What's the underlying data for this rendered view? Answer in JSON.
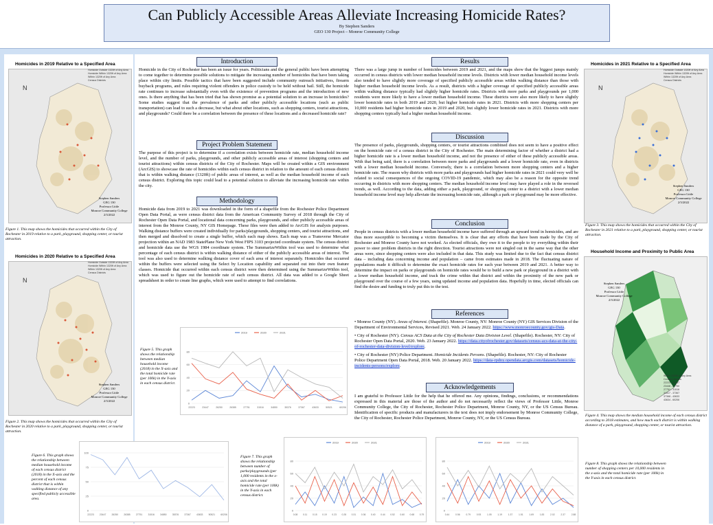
{
  "header": {
    "title": "Can Publicly Accessible Areas Alleviate Increasing Homicide Rates?",
    "author": "By Stephen Sanders",
    "course": "GEO 130 Project – Monroe Community College"
  },
  "colors": {
    "poster_bg": "#cfe0f4",
    "header_bg": "#dbe6f5",
    "series_2019": "#5b86d6",
    "series_2020": "#e8604a",
    "series_2021": "#b8b8b8"
  },
  "sections": {
    "introduction": {
      "heading": "Introduction",
      "body": "Homicide in the City of Rochester has been an issue for years. Politicians and the general public have been attempting to come together to determine possible solutions to mitigate the increasing number of homicides that have been taking place within city limits. Possible tactics that have been suggested include community outreach initiatives, firearm buyback programs, and rules requiring violent offenders in police custody to be held without bail. Still, the homicide rate continues to increase substantially even with the existence of prevention programs and the introduction of new ones. Is there anything that has been tried that has shown promise as a potential solution to an increase in homicides? Some studies suggest that the prevalence of parks and other publicly accessible locations (such as public transportation) can lead to such a decrease, but what about other locations, such as shopping centers, tourist attractions, and playgrounds? Could there be a correlation between the presence of these locations and a decreased homicide rate?"
    },
    "problem": {
      "heading": "Project Problem Statement",
      "body": "The purpose of this project is to determine if a correlation exists between homicide rate, median household income level, and the number of parks, playgrounds, and other publicly accessible areas of interest (shopping centers and tourist attractions) within census districts of the City of Rochester. Maps will be created within a GIS environment (ArcGIS) to showcase the rate of homicides within each census district in relation to the amount of each census district that is within walking distance (1320ft) of public areas of interest, as well as the median household income of each census district. Exploring this topic could lead to a potential solution to alleviate the increasing homicide rate within the city."
    },
    "methodology": {
      "heading": "Methodology",
      "body": "Homicide data from 2019 to 2021 was downloaded in the form of a shapefile from the Rochester Police Department Open Data Portal, as were census district data from the American Community Survey of 2018 through the City of Rochester Open Data Portal, and locational data concerning parks, playgrounds, and other publicly accessible areas of interest from the Monroe County, NY GIS Homepage. These files were then added to ArcGIS for analysis purposes. Walking distance buffers were created individually for parks/playgrounds, shopping centers, and tourist attractions, and then merged and dissolved to create a single buffer, which each map shows. Each map was a Transverse Mercator projection within an NAD 1983 StatePlane New York West FIPS 3103 projected coordinate system. The census district and homicide data use the WGS 1984 coordinate system. The SummarizeWithin tool was used to determine what percentage of each census district is within walking distance of either of the publicly accessible areas of interest. The tool was also used to determine walking distance cover of each area of interest separately. Homicides that occurred within the buffers were selected using the Select by Location capability and separated out into their own feature classes. Homicide that occurred within each census district were then determined using the SummarizeWithin tool, which was used to figure out the homicide rate of each census district. All data was added to a Google Sheet spreadsheet in order to create line graphs, which were used to attempt to find correlations."
    },
    "results": {
      "heading": "Results",
      "body": "There was a large jump in number of homicides between 2019 and 2021, and the maps show that the biggest jumps mainly occurred in census districts with lower median household income levels. Districts with lower median household income levels also tended to have slightly more coverage of specified publicly accessible areas within walking distance than those with higher median household income levels. As a result, districts with a higher coverage of specified publicly accessible areas within walking distance typically had slightly higher homicide rates. Districts with more parks and playgrounds per 1,000 residents were more likely to have a lower median household income. These districts were also more likely to have slightly lower homicide rates in both 2019 and 2020, but higher homicide rates in 2021. Districts with more shopping centers per 10,000 residents had higher homicide rates in 2019 and 2020, but slightly lower homicide rates in 2021. Districts with more shopping centers typically had a higher median household income."
    },
    "discussion": {
      "heading": "Discussion",
      "body": "The presence of parks, playgrounds, shopping centers, or tourist attractions combined does not seem to have a positive effect on the homicide rate of a census district in the City of Rochester. The main determining factor of whether a district had a higher homicide rate is a lower median household income, and not the presence of either of these publicly accessible areas. With that being said, there is a correlation between more parks and playgrounds and a lower homicide rate, even in districts with a lower median household income. Conversely, there is a correlation between more shopping centers and a higher homicide rate. The reason why districts with more parks and playgrounds had higher homicide rates in 2021 could very well be related to social consequences of the ongoing COVID-19 pandemic, which may also be a reason for the opposite trend occurring in districts with more shopping centers. The median household income level may have played a role in the reversed trends, as well. According to the data, adding either a park, playground, or shopping center to a district with a lower median household income level may help alleviate the increasing homicide rate, although a park or playground may be more effective."
    },
    "conclusion": {
      "heading": "Conclusion",
      "body": "People in census districts with a lower median household income have suffered through an upward trend in homicides, and are thus more susceptible to becoming a victim themselves. It is clear that any efforts that have been made by the City of Rochester and Monroe County have not worked. As elected officials, they owe it to the people to try everything within their power to steer problem districts in the right direction. Tourist attractions were not singled out in the same way that the other areas were, since shopping centers were also included in that data. This study was limited due to the fact that census district data – including data concerning income and population – came from estimates made in 2018. The fluctuating nature of populations made it difficult to determine the exact homicide rates for each year between 2019 and 2021. A better way to determine the impact on parks or playgrounds on homicide rates would be to build a new park or playground in a district with a lower median household income, and track the crime within that district and within the proximity of the new park or playground over the course of a few years, using updated income and population data. Hopefully in time, elected officials can find the desire and funding to truly put this to the test."
    },
    "references": {
      "heading": "References",
      "items": [
        {
          "pre": "• Monroe County (NY). ",
          "title": "Areas of Interest",
          "post": ". (Shapefile). Monroe County, NY: Monroe County (NY) GIS Services Division of the Department of Environmental Services, Revised 2021. Web. 24 January 2022. ",
          "link": "https://www.monroecounty.gov/gis-Data",
          "end": "."
        },
        {
          "pre": "• City of Rochester (NY). ",
          "title": "Census ACS Data at the City of Rochester Data Division Level",
          "post": ". (Shapefile). Rochester, NY: City of Rochester Open Data Portal, 2020. Web. 23 January 2022. ",
          "link": "https://data.cityofrochester.gov/datasets/census-acs-data-at-the-city-of-rochester-data-division-level/explore",
          "end": "."
        },
        {
          "pre": "• City of Rochester (NY) Police Department. ",
          "title": "Homicide Incidents Persons",
          "post": ". (Shapefile). Rochester, NY: City of Rochester Police Department Open Data Portal, 2018. Web. 20 January 2022. ",
          "link": "https://data-rpdny.opendata.arcgis.com/datasets/homicide-incidents-persons/explore",
          "end": "."
        }
      ]
    },
    "acknowledgements": {
      "heading": "Acknowledgements",
      "body": "I am grateful to Professor Little for the help that he offered me. Any opinions, findings, conclusions, or recommendations expressed in this material are those of the author and do not necessarily reflect the views of Professor Little, Monroe Community College, the City of Rochester, Rochester Police Department, Monroe County, NY, or the US Census Bureau. Identification of specific products and manufacturers in the text does not imply endorsement by Monroe Community College, the City of Rochester, Rochester Police Department, Monroe County, NY, or the US Census Bureau."
    }
  },
  "maps": {
    "m2019": {
      "title": "Homicides in 2019 Relative to a Specified Area",
      "caption": "Figure 1. This map shows the homicides that occurred within the City of Rochester in 2019 relative to a park, playground, shopping center, or tourist attraction.",
      "legend": [
        "Homicide Outside 1320ft of Any Area",
        "Homicide Within 1320ft of Any Area",
        "Within 1320ft of Any Area",
        "Census Districts"
      ]
    },
    "m2020": {
      "title": "Homicides in 2020 Relative to a Specified Area",
      "caption": "Figure 2. This map shows the homicides that occurred within the City of Rochester in 2020 relative to a park, playground, shopping center, or tourist attraction.",
      "legend": [
        "Homicide Outside 1320ft of Any Area",
        "Homicide Within 1320ft of Any Area",
        "Within 1320ft of Any Area",
        "Census Districts"
      ]
    },
    "m2021": {
      "title": "Homicides in 2021 Relative to a Specified Area",
      "caption": "Figure 3. This map shows the homicides that occurred within the City of Rochester in 2021 relative to a park, playground, shopping center, or tourist attraction.",
      "legend": [
        "Homicide Outside 1320ft of Any Area",
        "Homicide Within 1320ft of Any Area",
        "Within 1320ft of Any Area",
        "Census Districts"
      ]
    },
    "income": {
      "title": "Household Income and Proximity to Public Area",
      "caption": "Figure 4. This map shows the median household income of each census district according to 2018 estimates, and how much each district is within walking distance of a park, playground, shopping center, or tourist attraction.",
      "legend": [
        "Within 1320ft of Any Area",
        "Census Districts",
        "22223 - 23447",
        "23448 - 27750",
        "27751 - 31516",
        "31517 - 37367",
        "37368 - 43633",
        "43634 - 60206"
      ]
    },
    "credit": [
      "Stephen Sanders",
      "GEG 130",
      "Professor Little",
      "Monroe Community College",
      "2/3/2022"
    ]
  },
  "figure_captions": {
    "fig5": "Figure 5. This graph shows the relationship between median household income (2018) in the X-axis and the total homicide rate (per 100k) in the Y-axis in each census district.",
    "fig6": "Figure 6. This graph shows the relationship between median household income of each census district (2018) in the X-axis and the percent of each census district that is within walking distance of any specified publicly accessible area.",
    "fig7": "Figure 7. This graph shows the relationship between number of parks/playgrounds (per 1,000 residents in the x-axis and the total homicide rate (per 100k) in the Y-axis in each census district.",
    "fig8": "Figure 8. This graph shows the relationship between number of shopping centers per 10,000 residents in the x-axis and the total homicide rate (per 100k) in the Y-axis in each census district."
  },
  "chart_data": [
    {
      "type": "line",
      "legend": [
        "2019",
        "2020",
        "2021"
      ],
      "categories": [
        "22223",
        "23447",
        "26250",
        "26385",
        "27751",
        "31516",
        "34850",
        "35376",
        "37367",
        "43633",
        "50521",
        "60206"
      ],
      "ylim": [
        0,
        100
      ],
      "yticks": [
        "0",
        "20",
        "40",
        "60",
        "80"
      ],
      "series": [
        {
          "name": "2019",
          "values": [
            5,
            20,
            8,
            12,
            35,
            18,
            58,
            26,
            10,
            14,
            6,
            2
          ]
        },
        {
          "name": "2020",
          "values": [
            62,
            38,
            30,
            48,
            22,
            14,
            8,
            30,
            5,
            20,
            4,
            12
          ]
        },
        {
          "name": "2021",
          "values": [
            70,
            62,
            55,
            80,
            58,
            70,
            18,
            52,
            40,
            30,
            25,
            8
          ]
        }
      ]
    },
    {
      "type": "line",
      "categories": [
        "22223",
        "23447",
        "26250",
        "26385",
        "27751",
        "31516",
        "34850",
        "35376",
        "37367",
        "43633",
        "50521",
        "60206"
      ],
      "ylim": [
        0,
        100
      ],
      "yticks": [
        "0",
        "25",
        "50",
        "75",
        "100"
      ],
      "series": [
        {
          "values": [
            97,
            88,
            62,
            92,
            55,
            70,
            38,
            52,
            40,
            24,
            45,
            18
          ]
        }
      ]
    },
    {
      "type": "line",
      "legend": [
        "2019",
        "2020",
        "2021"
      ],
      "categories": [
        "0.08",
        "0.11",
        "0.15",
        "0.19",
        "0.23",
        "0.28",
        "0.31",
        "0.36",
        "0.40",
        "0.44",
        "0.52",
        "0.60",
        "0.68",
        "0.79"
      ],
      "ylim": [
        0,
        100
      ],
      "yticks": [
        "0",
        "20",
        "40",
        "60",
        "80"
      ],
      "series": [
        {
          "name": "2019",
          "values": [
            10,
            30,
            8,
            40,
            12,
            55,
            5,
            22,
            8,
            60,
            10,
            18,
            5,
            12
          ]
        },
        {
          "name": "2020",
          "values": [
            40,
            12,
            55,
            15,
            50,
            8,
            45,
            12,
            38,
            10,
            55,
            8,
            30,
            10
          ]
        },
        {
          "name": "2021",
          "values": [
            60,
            45,
            70,
            35,
            62,
            40,
            75,
            30,
            55,
            42,
            66,
            35,
            50,
            28
          ]
        }
      ]
    },
    {
      "type": "line",
      "legend": [
        "2019",
        "2020",
        "2021"
      ],
      "categories": [
        "0.44",
        "0.56",
        "0.79",
        "0.93",
        "1.05",
        "1.19",
        "1.37",
        "1.51",
        "1.69",
        "1.83",
        "2.02",
        "2.37",
        "2.88"
      ],
      "ylim": [
        0,
        100
      ],
      "yticks": [
        "0",
        "20",
        "40",
        "60",
        "80"
      ],
      "series": [
        {
          "name": "2019",
          "values": [
            15,
            50,
            10,
            40,
            20,
            60,
            12,
            45,
            8,
            35,
            10,
            20,
            5
          ]
        },
        {
          "name": "2020",
          "values": [
            45,
            12,
            55,
            15,
            48,
            10,
            50,
            20,
            40,
            12,
            35,
            15,
            8
          ]
        },
        {
          "name": "2021",
          "values": [
            70,
            40,
            65,
            38,
            72,
            35,
            60,
            45,
            68,
            30,
            55,
            40,
            25
          ]
        }
      ]
    }
  ]
}
